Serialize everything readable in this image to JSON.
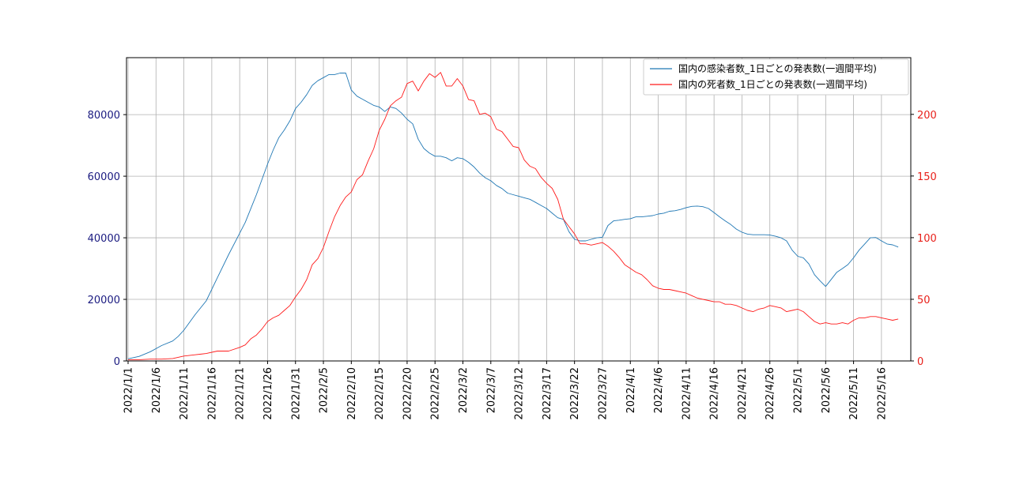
{
  "chart_data": {
    "type": "line",
    "x_dates": [
      "2022/1/1",
      "2022/1/6",
      "2022/1/11",
      "2022/1/16",
      "2022/1/21",
      "2022/1/26",
      "2022/1/31",
      "2022/2/5",
      "2022/2/10",
      "2022/2/15",
      "2022/2/20",
      "2022/2/25",
      "2022/3/2",
      "2022/3/7",
      "2022/3/12",
      "2022/3/17",
      "2022/3/22",
      "2022/3/27",
      "2022/4/1",
      "2022/4/6",
      "2022/4/11",
      "2022/4/16",
      "2022/4/21",
      "2022/4/26",
      "2022/5/1",
      "2022/5/6",
      "2022/5/11",
      "2022/5/16"
    ],
    "xlim_days": [
      0,
      137
    ],
    "grid": true,
    "legend_position": "top-right",
    "series": [
      {
        "name": "国内の感染者数_1日ごとの発表数(一週間平均)",
        "axis": "left",
        "color": "#1f77b4",
        "points": [
          [
            0,
            700
          ],
          [
            2,
            1500
          ],
          [
            4,
            3000
          ],
          [
            6,
            5000
          ],
          [
            8,
            6500
          ],
          [
            9,
            8000
          ],
          [
            10,
            10000
          ],
          [
            12,
            15000
          ],
          [
            14,
            19500
          ],
          [
            16,
            27000
          ],
          [
            18,
            34500
          ],
          [
            20,
            41500
          ],
          [
            21,
            45000
          ],
          [
            23,
            54000
          ],
          [
            24,
            59000
          ],
          [
            25,
            64000
          ],
          [
            26,
            68500
          ],
          [
            27,
            72500
          ],
          [
            28,
            75000
          ],
          [
            29,
            78000
          ],
          [
            30,
            82000
          ],
          [
            31,
            84000
          ],
          [
            32,
            86500
          ],
          [
            33,
            89500
          ],
          [
            34,
            91000
          ],
          [
            35,
            92000
          ],
          [
            36,
            93000
          ],
          [
            37,
            93000
          ],
          [
            38,
            93500
          ],
          [
            39,
            93500
          ],
          [
            40,
            88000
          ],
          [
            41,
            86000
          ],
          [
            42,
            85000
          ],
          [
            43,
            84000
          ],
          [
            44,
            83000
          ],
          [
            45,
            82500
          ],
          [
            46,
            81000
          ],
          [
            47,
            82500
          ],
          [
            48,
            82000
          ],
          [
            49,
            80500
          ],
          [
            50,
            78500
          ],
          [
            51,
            77000
          ],
          [
            52,
            72000
          ],
          [
            53,
            69000
          ],
          [
            54,
            67500
          ],
          [
            55,
            66500
          ],
          [
            56,
            66500
          ],
          [
            57,
            66000
          ],
          [
            58,
            65000
          ],
          [
            59,
            66000
          ],
          [
            60,
            65700
          ],
          [
            61,
            64500
          ],
          [
            62,
            63000
          ],
          [
            63,
            61000
          ],
          [
            64,
            59500
          ],
          [
            65,
            58500
          ],
          [
            66,
            57000
          ],
          [
            67,
            56000
          ],
          [
            68,
            54500
          ],
          [
            69,
            54000
          ],
          [
            70,
            53500
          ],
          [
            71,
            53000
          ],
          [
            72,
            52500
          ],
          [
            73,
            51500
          ],
          [
            74,
            50500
          ],
          [
            75,
            49500
          ],
          [
            76,
            48000
          ],
          [
            77,
            46500
          ],
          [
            78,
            46000
          ],
          [
            79,
            42000
          ],
          [
            80,
            39500
          ],
          [
            81,
            39000
          ],
          [
            82,
            39000
          ],
          [
            83,
            39500
          ],
          [
            84,
            40000
          ],
          [
            85,
            40200
          ],
          [
            86,
            44000
          ],
          [
            87,
            45500
          ],
          [
            88,
            45700
          ],
          [
            89,
            46000
          ],
          [
            90,
            46200
          ],
          [
            91,
            46800
          ],
          [
            92,
            46800
          ],
          [
            93,
            47000
          ],
          [
            94,
            47200
          ],
          [
            95,
            47700
          ],
          [
            96,
            48000
          ],
          [
            97,
            48600
          ],
          [
            98,
            48800
          ],
          [
            99,
            49200
          ],
          [
            100,
            49800
          ],
          [
            101,
            50200
          ],
          [
            102,
            50300
          ],
          [
            103,
            50100
          ],
          [
            104,
            49500
          ],
          [
            105,
            48200
          ],
          [
            106,
            46800
          ],
          [
            107,
            45500
          ],
          [
            108,
            44300
          ],
          [
            109,
            42800
          ],
          [
            110,
            41800
          ],
          [
            111,
            41200
          ],
          [
            112,
            41000
          ],
          [
            113,
            41000
          ],
          [
            114,
            41000
          ],
          [
            115,
            40900
          ],
          [
            116,
            40500
          ],
          [
            117,
            40000
          ],
          [
            118,
            39000
          ],
          [
            119,
            36000
          ],
          [
            120,
            34000
          ],
          [
            121,
            33500
          ],
          [
            122,
            31500
          ],
          [
            123,
            28000
          ],
          [
            124,
            26000
          ],
          [
            125,
            24200
          ],
          [
            126,
            26500
          ],
          [
            127,
            28800
          ],
          [
            128,
            30000
          ],
          [
            129,
            31300
          ],
          [
            130,
            33500
          ],
          [
            131,
            36000
          ],
          [
            132,
            38000
          ],
          [
            133,
            40000
          ],
          [
            134,
            40100
          ],
          [
            135,
            39000
          ],
          [
            136,
            38000
          ],
          [
            137,
            37700
          ],
          [
            138,
            37000
          ]
        ]
      },
      {
        "name": "国内の死者数_1日ごとの発表数(一週間平均)",
        "axis": "right",
        "color": "#ff1a1a",
        "points": [
          [
            0,
            1
          ],
          [
            2,
            1
          ],
          [
            4,
            1.5
          ],
          [
            6,
            1.5
          ],
          [
            8,
            2
          ],
          [
            10,
            4
          ],
          [
            12,
            5
          ],
          [
            14,
            6
          ],
          [
            16,
            8
          ],
          [
            18,
            8
          ],
          [
            20,
            11
          ],
          [
            21,
            13
          ],
          [
            22,
            18
          ],
          [
            23,
            21
          ],
          [
            24,
            26
          ],
          [
            25,
            32
          ],
          [
            26,
            35
          ],
          [
            27,
            37
          ],
          [
            28,
            41
          ],
          [
            29,
            45
          ],
          [
            30,
            52
          ],
          [
            31,
            58
          ],
          [
            32,
            66
          ],
          [
            33,
            78
          ],
          [
            34,
            83
          ],
          [
            35,
            92
          ],
          [
            36,
            105
          ],
          [
            37,
            117
          ],
          [
            38,
            126
          ],
          [
            39,
            133
          ],
          [
            40,
            137
          ],
          [
            41,
            147
          ],
          [
            42,
            151
          ],
          [
            43,
            162
          ],
          [
            44,
            172
          ],
          [
            45,
            187
          ],
          [
            46,
            196
          ],
          [
            47,
            207
          ],
          [
            48,
            211
          ],
          [
            49,
            214
          ],
          [
            50,
            225
          ],
          [
            51,
            227
          ],
          [
            52,
            219
          ],
          [
            53,
            227
          ],
          [
            54,
            233
          ],
          [
            55,
            230
          ],
          [
            56,
            234
          ],
          [
            57,
            223
          ],
          [
            58,
            223
          ],
          [
            59,
            229
          ],
          [
            60,
            223
          ],
          [
            61,
            212
          ],
          [
            62,
            211
          ],
          [
            63,
            200
          ],
          [
            64,
            201
          ],
          [
            65,
            198
          ],
          [
            66,
            188
          ],
          [
            67,
            186
          ],
          [
            68,
            180
          ],
          [
            69,
            174
          ],
          [
            70,
            173
          ],
          [
            71,
            163
          ],
          [
            72,
            158
          ],
          [
            73,
            156
          ],
          [
            74,
            149
          ],
          [
            75,
            144
          ],
          [
            76,
            140
          ],
          [
            77,
            131
          ],
          [
            78,
            115
          ],
          [
            79,
            109
          ],
          [
            80,
            103
          ],
          [
            81,
            95
          ],
          [
            82,
            95
          ],
          [
            83,
            94
          ],
          [
            84,
            95
          ],
          [
            85,
            96
          ],
          [
            86,
            93
          ],
          [
            87,
            89
          ],
          [
            88,
            84
          ],
          [
            89,
            78
          ],
          [
            90,
            75
          ],
          [
            91,
            72
          ],
          [
            92,
            70
          ],
          [
            93,
            66
          ],
          [
            94,
            61
          ],
          [
            95,
            59
          ],
          [
            96,
            58
          ],
          [
            97,
            58
          ],
          [
            98,
            57
          ],
          [
            99,
            56
          ],
          [
            100,
            55
          ],
          [
            101,
            53
          ],
          [
            102,
            51
          ],
          [
            103,
            50
          ],
          [
            104,
            49
          ],
          [
            105,
            48
          ],
          [
            106,
            48
          ],
          [
            107,
            46
          ],
          [
            108,
            46
          ],
          [
            109,
            45
          ],
          [
            110,
            43
          ],
          [
            111,
            41
          ],
          [
            112,
            40
          ],
          [
            113,
            42
          ],
          [
            114,
            43
          ],
          [
            115,
            45
          ],
          [
            116,
            44
          ],
          [
            117,
            43
          ],
          [
            118,
            40
          ],
          [
            119,
            41
          ],
          [
            120,
            42
          ],
          [
            121,
            40
          ],
          [
            122,
            36
          ],
          [
            123,
            32
          ],
          [
            124,
            30
          ],
          [
            125,
            31
          ],
          [
            126,
            30
          ],
          [
            127,
            30
          ],
          [
            128,
            31
          ],
          [
            129,
            30
          ],
          [
            130,
            33
          ],
          [
            131,
            35
          ],
          [
            132,
            35
          ],
          [
            133,
            36
          ],
          [
            134,
            36
          ],
          [
            135,
            35
          ],
          [
            136,
            34
          ],
          [
            137,
            33
          ],
          [
            138,
            34
          ]
        ]
      }
    ],
    "y_left": {
      "ticks": [
        0,
        20000,
        40000,
        60000,
        80000
      ],
      "ylim": [
        0,
        98500
      ],
      "color": "#1a1a80"
    },
    "y_right": {
      "ticks": [
        0,
        50,
        100,
        150,
        200
      ],
      "ylim": [
        0,
        246
      ],
      "color": "#e8201a"
    }
  }
}
